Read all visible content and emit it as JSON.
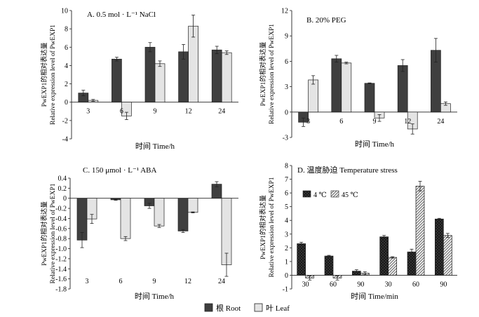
{
  "legend": {
    "root": "根 Root",
    "leaf": "叶 Leaf"
  },
  "colors": {
    "root": "#3f3f3f",
    "leaf": "#e4e4e4",
    "axis": "#222222",
    "crosshatch_4c": "#222222",
    "diag_45c": "#555555"
  },
  "chart_data": [
    {
      "type": "bar",
      "title": "A. 0.5 mol · L⁻¹ NaCl",
      "xlabel": "时间 Time/h",
      "ylabel_line1": "PwEXP1的相对表达量",
      "ylabel_line2": "Relative expression level of PwEXP1",
      "categories": [
        "3",
        "6",
        "9",
        "12",
        "24"
      ],
      "ylim": [
        -4,
        10
      ],
      "yticks": [
        "-4",
        "-2",
        "0",
        "2",
        "4",
        "6",
        "8",
        "10"
      ],
      "series": [
        {
          "name": "Root",
          "values": [
            1.0,
            4.7,
            6.0,
            5.5,
            5.7
          ],
          "errors": [
            0.3,
            0.2,
            0.5,
            0.8,
            0.4
          ]
        },
        {
          "name": "Leaf",
          "values": [
            0.2,
            -1.5,
            4.2,
            8.3,
            5.4
          ],
          "errors": [
            0.1,
            0.4,
            0.3,
            1.2,
            0.2
          ]
        }
      ]
    },
    {
      "type": "bar",
      "title": "B. 20% PEG",
      "xlabel": "时间 Time/h",
      "ylabel_line1": "PwEXP1的相对表达量",
      "ylabel_line2": "Relative expression level of PwEXP1",
      "categories": [
        "3",
        "6",
        "9",
        "12",
        "24"
      ],
      "ylim": [
        -3,
        12
      ],
      "yticks": [
        "-3",
        "0",
        "3",
        "6",
        "9",
        "12"
      ],
      "series": [
        {
          "name": "Root",
          "values": [
            -1.2,
            6.3,
            3.4,
            5.5,
            7.3
          ],
          "errors": [
            0.5,
            0.4,
            0.05,
            0.7,
            1.4
          ]
        },
        {
          "name": "Leaf",
          "values": [
            3.8,
            5.8,
            -0.7,
            -2.0,
            1.0
          ],
          "errors": [
            0.5,
            0.1,
            0.4,
            0.6,
            0.2
          ]
        }
      ]
    },
    {
      "type": "bar",
      "title": "C. 150 μmol · L⁻¹ ABA",
      "xlabel": "时间 Time/h",
      "ylabel_line1": "PwEXP1的相对表达量",
      "ylabel_line2": "Relative expression level of PwEXP1",
      "categories": [
        "3",
        "6",
        "9",
        "12",
        "24"
      ],
      "ylim": [
        -1.8,
        0.4
      ],
      "yticks": [
        "-1.8",
        "-1.6",
        "-1.4",
        "-1.2",
        "-1.0",
        "-0.8",
        "-0.6",
        "-0.4",
        "-0.2",
        "0",
        "0.2",
        "0.4"
      ],
      "series": [
        {
          "name": "Root",
          "values": [
            -0.83,
            -0.03,
            -0.15,
            -0.65,
            0.28
          ],
          "errors": [
            0.15,
            0.01,
            0.05,
            0.03,
            0.05
          ]
        },
        {
          "name": "Leaf",
          "values": [
            -0.41,
            -0.8,
            -0.55,
            -0.28,
            -1.32
          ],
          "errors": [
            0.09,
            0.04,
            0.03,
            0.01,
            0.23
          ]
        }
      ]
    },
    {
      "type": "bar",
      "title": "D. 温度胁迫 Temperature stress",
      "xlabel": "时间 Time/min",
      "ylabel_line1": "PwEXP1的相对表达量",
      "ylabel_line2": "Relative expression level of PwEXP1",
      "legend_4c": "4 ℃",
      "legend_45c": "45 ℃",
      "categories": [
        "30",
        "60",
        "90",
        "30",
        "60",
        "90"
      ],
      "ylim": [
        -1,
        8
      ],
      "yticks": [
        "-1",
        "0",
        "1",
        "2",
        "3",
        "4",
        "5",
        "6",
        "7",
        "8"
      ],
      "series": [
        {
          "name": "Root",
          "values": [
            2.3,
            1.4,
            0.3,
            2.8,
            1.7,
            4.1
          ],
          "errors": [
            0.1,
            0.05,
            0.1,
            0.1,
            0.2,
            0.05
          ]
        },
        {
          "name": "Leaf",
          "values": [
            -0.2,
            -0.2,
            0.15,
            1.3,
            6.5,
            2.9
          ],
          "errors": [
            0.15,
            0.15,
            0.1,
            0.05,
            0.35,
            0.15
          ]
        }
      ]
    }
  ]
}
